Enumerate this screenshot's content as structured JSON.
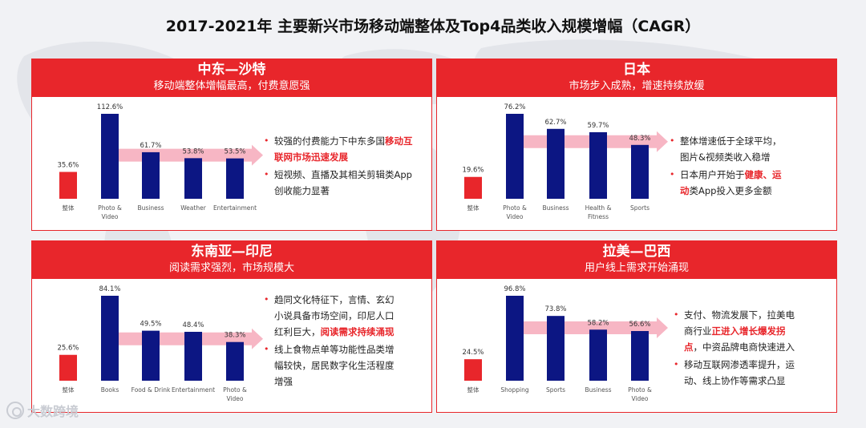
{
  "title": "2017-2021年 主要新兴市场移动端整体及Top4品类收入规模增幅（CAGR）",
  "watermark": "大数跨境",
  "colors": {
    "accent": "#e8262b",
    "bar_total": "#e8262b",
    "bar_category": "#0c1683",
    "arrow": "#f7b6c4"
  },
  "panels": [
    {
      "header": "中东—沙特",
      "subheader": "移动端整体增幅最高，付费意愿强",
      "notes": [
        [
          {
            "t": "较强的付费能力下中东多国",
            "h": false
          },
          {
            "t": "移动互联网市场迅速发展",
            "h": true
          }
        ],
        [
          {
            "t": "短视频、直播及其相关剪辑类App创收能力显著",
            "h": false
          }
        ]
      ]
    },
    {
      "header": "日本",
      "subheader": "市场步入成熟，增速持续放缓",
      "notes": [
        [
          {
            "t": "整体增速低于全球平均，图片&视频类收入稳增",
            "h": false
          }
        ],
        [
          {
            "t": "日本用户开始于",
            "h": false
          },
          {
            "t": "健康、运动",
            "h": true
          },
          {
            "t": "类App投入更多金额",
            "h": false
          }
        ]
      ]
    },
    {
      "header": "东南亚—印尼",
      "subheader": "阅读需求强烈，市场规模大",
      "notes": [
        [
          {
            "t": "趋同文化特征下，言情、玄幻小说具备市场空间，印尼人口红利巨大，",
            "h": false
          },
          {
            "t": "阅读需求持续涌现",
            "h": true
          }
        ],
        [
          {
            "t": "线上食物点单等功能性品类增幅较快，居民数字化生活程度增强",
            "h": false
          }
        ]
      ]
    },
    {
      "header": "拉美—巴西",
      "subheader": "用户线上需求开始涌现",
      "notes": [
        [
          {
            "t": "支付、物流发展下，拉美电商行业",
            "h": false
          },
          {
            "t": "正进入增长爆发拐点",
            "h": true
          },
          {
            "t": "，中资品牌电商快速进入",
            "h": false
          }
        ],
        [
          {
            "t": "移动互联网渗透率提升，运动、线上协作等需求凸显",
            "h": false
          }
        ]
      ]
    }
  ],
  "chart_data": [
    {
      "type": "bar",
      "categories": [
        "整体",
        "Photo & Video",
        "Business",
        "Weather",
        "Entertainment"
      ],
      "values": [
        35.6,
        112.6,
        61.7,
        53.8,
        53.5
      ],
      "labels": [
        "35.6%",
        "112.6%",
        "61.7%",
        "53.8%",
        "53.5%"
      ]
    },
    {
      "type": "bar",
      "categories": [
        "整体",
        "Photo & Video",
        "Business",
        "Health & Fitness",
        "Sports"
      ],
      "values": [
        19.6,
        76.2,
        62.7,
        59.7,
        48.3
      ],
      "labels": [
        "19.6%",
        "76.2%",
        "62.7%",
        "59.7%",
        "48.3%"
      ]
    },
    {
      "type": "bar",
      "categories": [
        "整体",
        "Books",
        "Food & Drink",
        "Entertainment",
        "Photo & Video"
      ],
      "values": [
        25.6,
        84.1,
        49.5,
        48.4,
        38.3
      ],
      "labels": [
        "25.6%",
        "84.1%",
        "49.5%",
        "48.4%",
        "38.3%"
      ]
    },
    {
      "type": "bar",
      "categories": [
        "整体",
        "Shopping",
        "Sports",
        "Business",
        "Photo & Video"
      ],
      "values": [
        24.5,
        96.8,
        73.8,
        58.2,
        56.6
      ],
      "labels": [
        "24.5%",
        "96.8%",
        "73.8%",
        "58.2%",
        "56.6%"
      ]
    }
  ]
}
